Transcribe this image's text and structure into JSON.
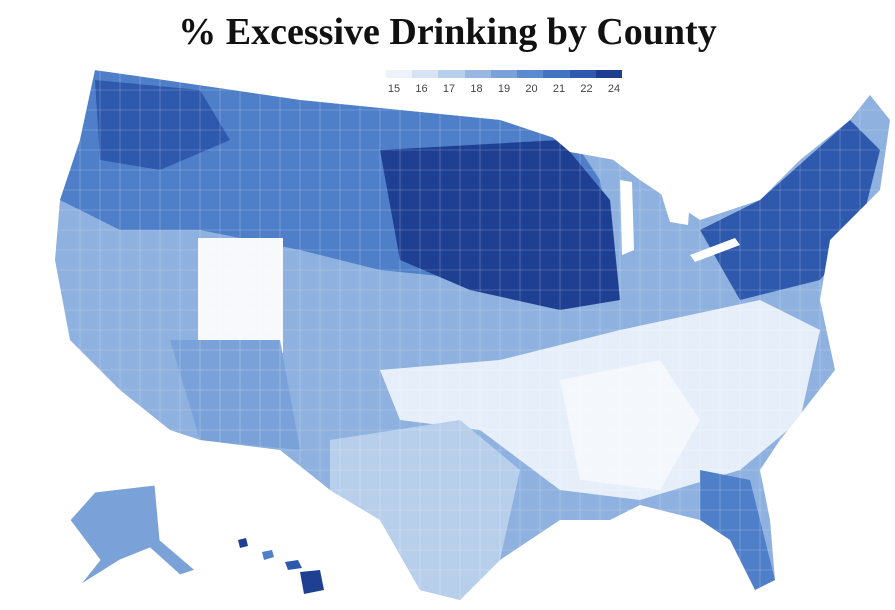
{
  "title": "% Excessive Drinking by County",
  "legend": {
    "ticks": [
      "15",
      "16",
      "17",
      "18",
      "19",
      "20",
      "21",
      "22",
      "24"
    ],
    "colors": [
      "#eef3fb",
      "#d6e3f4",
      "#b8cfec",
      "#98b8e2",
      "#7aa2d8",
      "#5b8bce",
      "#4473c2",
      "#2f59ad",
      "#1d3d8f"
    ]
  },
  "map_colors": {
    "lowest": "#f4f7fc",
    "low": "#c9daf0",
    "mid": "#8eb1df",
    "high": "#4f7fc9",
    "highest": "#1f3f93",
    "border": "#ffffff"
  }
}
